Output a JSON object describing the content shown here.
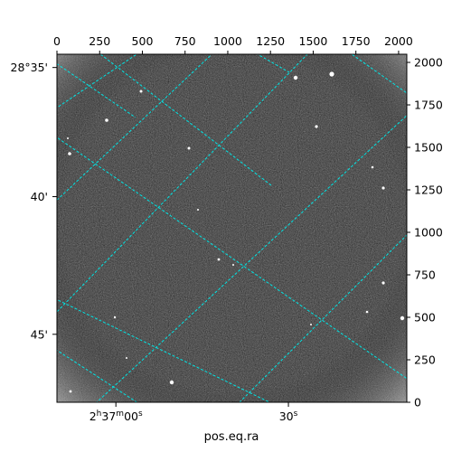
{
  "chart_data": {
    "type": "image",
    "title": "",
    "xlabel": "pos.eq.ra",
    "ylabel": "",
    "colormap": "grayscale",
    "grid_color": "#00e5e5",
    "pixel_axes": {
      "top_ticks": [
        "0",
        "250",
        "500",
        "750",
        "1000",
        "1250",
        "1500",
        "1750",
        "2000"
      ],
      "top_tick_values": [
        0,
        250,
        500,
        750,
        1000,
        1250,
        1500,
        1750,
        2000
      ],
      "right_ticks": [
        "0",
        "250",
        "500",
        "750",
        "1000",
        "1250",
        "1500",
        "1750",
        "2000"
      ],
      "right_tick_values": [
        0,
        250,
        500,
        750,
        1000,
        1250,
        1500,
        1750,
        2000
      ],
      "xlim": [
        0,
        2048
      ],
      "ylim": [
        0,
        2048
      ]
    },
    "world_axes": {
      "ra_ticks": [
        {
          "label": "2h37m00s",
          "h": "2",
          "m": "37",
          "s": "00",
          "pixel": 345
        },
        {
          "label": "30s",
          "h": "",
          "m": "",
          "s": "30",
          "pixel": 1355
        }
      ],
      "dec_ticks": [
        {
          "label": "28°35'",
          "pixel": 1970
        },
        {
          "label": "40'",
          "pixel": 1210
        },
        {
          "label": "45'",
          "pixel": 400
        }
      ]
    }
  }
}
